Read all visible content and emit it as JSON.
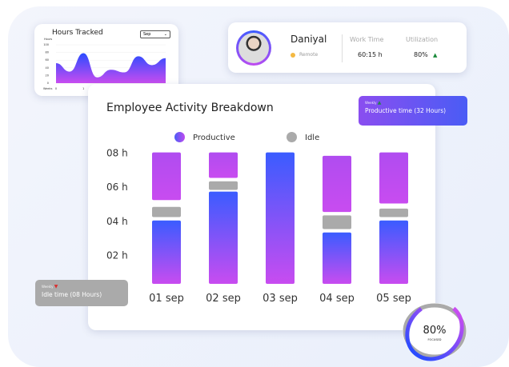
{
  "hours_tracked": {
    "title": "Hours Tracked",
    "month_select": "Sep",
    "y_label": "Hours",
    "y_ticks": [
      "100",
      "80",
      "60",
      "40",
      "20",
      "0"
    ],
    "x_label": "Weeks",
    "x_ticks": [
      "0",
      "1",
      "2",
      "3",
      "4"
    ],
    "series": {
      "x": [
        0,
        0.5,
        1,
        1.5,
        2,
        2.5,
        3,
        3.5,
        4
      ],
      "y": [
        52,
        30,
        78,
        15,
        35,
        28,
        70,
        47,
        65
      ]
    }
  },
  "profile": {
    "name": "Daniyal",
    "status": "Remote",
    "status_color": "#f4b942",
    "work_time_label": "Work Time",
    "work_time": "60:15 h",
    "utilization_label": "Utilization",
    "utilization": "80%",
    "trend": "up"
  },
  "breakdown": {
    "title": "Employee Activity Breakdown",
    "legend": [
      {
        "label": "Productive",
        "color": "#8a4ef0"
      },
      {
        "label": "Idle",
        "color": "#aaaaaa"
      }
    ],
    "y_ticks": [
      "08 h",
      "06 h",
      "04 h",
      "02 h"
    ],
    "days": [
      {
        "label": "01 sep",
        "productive": [
          [
            0,
            4.0
          ],
          [
            5.2,
            8.0
          ]
        ],
        "idle": [
          4.2,
          4.8
        ]
      },
      {
        "label": "02 sep",
        "productive": [
          [
            0,
            5.7
          ],
          [
            6.5,
            8.0
          ]
        ],
        "idle": [
          5.8,
          6.3
        ]
      },
      {
        "label": "03 sep",
        "productive": [
          [
            0,
            8.0
          ]
        ],
        "idle": null
      },
      {
        "label": "04 sep",
        "productive": [
          [
            0,
            3.3
          ],
          [
            4.5,
            7.8
          ]
        ],
        "idle": [
          3.5,
          4.3
        ]
      },
      {
        "label": "05 sep",
        "productive": [
          [
            0,
            4.0
          ],
          [
            5.0,
            8.0
          ]
        ],
        "idle": [
          4.2,
          4.7
        ]
      }
    ]
  },
  "productive_tip": {
    "period": "Weekly",
    "text": "Productive time  (32 Hours)",
    "trend": "up"
  },
  "idle_tip": {
    "period": "Weekly",
    "text": "Idle time  (08 Hours)",
    "trend": "down"
  },
  "focus": {
    "value": "80%",
    "label": "FOCUSED",
    "fraction": 0.8
  }
}
